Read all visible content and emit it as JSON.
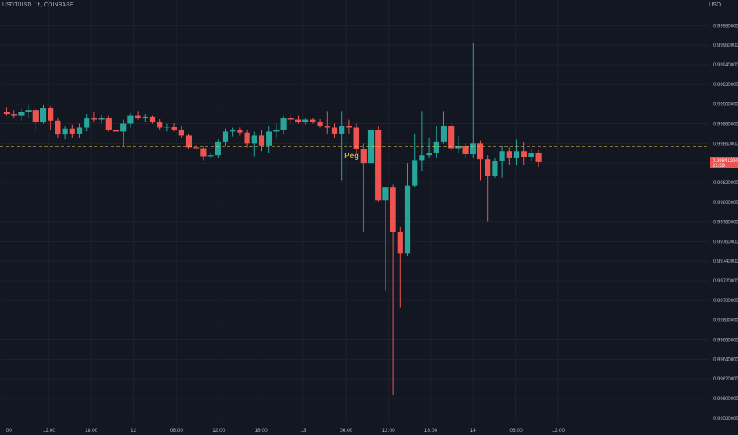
{
  "header": {
    "symbol_line": "USDT/USD, 1h, COINBASE",
    "currency": "USD"
  },
  "colors": {
    "background": "#131722",
    "grid": "#1e222d",
    "up": "#26a69a",
    "down": "#ef5350",
    "peg": "#f7c948",
    "axis_text": "#b2b5be"
  },
  "chart_data": {
    "type": "candlestick",
    "title": "USDT/USD, 1h, COINBASE",
    "ylabel": "USD",
    "ylim": [
      0.99575,
      1.0
    ],
    "y_ticks": [
      "0.99980000",
      "0.99960000",
      "0.99940000",
      "0.99920000",
      "0.99900000",
      "0.99880000",
      "0.99860000",
      "0.99840000",
      "0.99820000",
      "0.99800000",
      "0.99780000",
      "0.99760000",
      "0.99740000",
      "0.99720000",
      "0.99700000",
      "0.99680000",
      "0.99660000",
      "0.99640000",
      "0.99620000",
      "0.99600000",
      "0.99580000"
    ],
    "y_tick_values": [
      0.9998,
      0.9996,
      0.9994,
      0.9992,
      0.999,
      0.9988,
      0.9986,
      0.9984,
      0.9982,
      0.998,
      0.9978,
      0.9976,
      0.9974,
      0.9972,
      0.997,
      0.9968,
      0.9966,
      0.9964,
      0.9962,
      0.996,
      0.9958
    ],
    "x_ticks": [
      {
        "label": "00",
        "index": -0.1
      },
      {
        "label": "12:00",
        "index": 5.8
      },
      {
        "label": "18:00",
        "index": 11.6
      },
      {
        "label": "12",
        "index": 17.4
      },
      {
        "label": "06:00",
        "index": 23.3
      },
      {
        "label": "12:00",
        "index": 29.1
      },
      {
        "label": "18:00",
        "index": 34.9
      },
      {
        "label": "13",
        "index": 40.7
      },
      {
        "label": "06:00",
        "index": 46.6
      },
      {
        "label": "12:00",
        "index": 52.4
      },
      {
        "label": "18:00",
        "index": 58.2
      },
      {
        "label": "14",
        "index": 64.0
      },
      {
        "label": "06:00",
        "index": 69.9
      },
      {
        "label": "12:00",
        "index": 75.7
      }
    ],
    "peg": {
      "label": "Peg",
      "value": 0.99857
    },
    "last_price": {
      "label": "0.99841200",
      "sublabel": "21:59",
      "value": 0.99841
    },
    "candles": [
      {
        "o": 0.99892,
        "h": 0.99897,
        "l": 0.99888,
        "c": 0.9989
      },
      {
        "o": 0.9989,
        "h": 0.99894,
        "l": 0.99886,
        "c": 0.99888
      },
      {
        "o": 0.99888,
        "h": 0.99895,
        "l": 0.99883,
        "c": 0.99892
      },
      {
        "o": 0.99892,
        "h": 0.99899,
        "l": 0.99886,
        "c": 0.99894
      },
      {
        "o": 0.99894,
        "h": 0.99896,
        "l": 0.99872,
        "c": 0.99882
      },
      {
        "o": 0.99882,
        "h": 0.99899,
        "l": 0.9988,
        "c": 0.99896
      },
      {
        "o": 0.99896,
        "h": 0.99898,
        "l": 0.99874,
        "c": 0.99883
      },
      {
        "o": 0.99883,
        "h": 0.99886,
        "l": 0.99866,
        "c": 0.99869
      },
      {
        "o": 0.99869,
        "h": 0.99878,
        "l": 0.99864,
        "c": 0.99875
      },
      {
        "o": 0.99875,
        "h": 0.99879,
        "l": 0.99866,
        "c": 0.9987
      },
      {
        "o": 0.9987,
        "h": 0.9988,
        "l": 0.99866,
        "c": 0.99876
      },
      {
        "o": 0.99876,
        "h": 0.9989,
        "l": 0.99873,
        "c": 0.99886
      },
      {
        "o": 0.99886,
        "h": 0.99892,
        "l": 0.99882,
        "c": 0.99884
      },
      {
        "o": 0.99884,
        "h": 0.99889,
        "l": 0.99881,
        "c": 0.99886
      },
      {
        "o": 0.99886,
        "h": 0.99888,
        "l": 0.99872,
        "c": 0.99874
      },
      {
        "o": 0.99874,
        "h": 0.99877,
        "l": 0.99868,
        "c": 0.99872
      },
      {
        "o": 0.99872,
        "h": 0.99884,
        "l": 0.99858,
        "c": 0.9988
      },
      {
        "o": 0.9988,
        "h": 0.99891,
        "l": 0.99876,
        "c": 0.99888
      },
      {
        "o": 0.99888,
        "h": 0.99893,
        "l": 0.99884,
        "c": 0.99886
      },
      {
        "o": 0.99886,
        "h": 0.9989,
        "l": 0.99882,
        "c": 0.99887
      },
      {
        "o": 0.99887,
        "h": 0.99888,
        "l": 0.9988,
        "c": 0.99882
      },
      {
        "o": 0.99882,
        "h": 0.99885,
        "l": 0.99874,
        "c": 0.99876
      },
      {
        "o": 0.99876,
        "h": 0.9988,
        "l": 0.99872,
        "c": 0.99877
      },
      {
        "o": 0.99877,
        "h": 0.99881,
        "l": 0.99872,
        "c": 0.99874
      },
      {
        "o": 0.99874,
        "h": 0.99878,
        "l": 0.99866,
        "c": 0.99868
      },
      {
        "o": 0.99868,
        "h": 0.9987,
        "l": 0.99854,
        "c": 0.99856
      },
      {
        "o": 0.99856,
        "h": 0.9986,
        "l": 0.99853,
        "c": 0.99855
      },
      {
        "o": 0.99855,
        "h": 0.99857,
        "l": 0.99843,
        "c": 0.99847
      },
      {
        "o": 0.99847,
        "h": 0.9985,
        "l": 0.99845,
        "c": 0.99848
      },
      {
        "o": 0.99848,
        "h": 0.99864,
        "l": 0.99845,
        "c": 0.99862
      },
      {
        "o": 0.99862,
        "h": 0.99875,
        "l": 0.99858,
        "c": 0.99872
      },
      {
        "o": 0.99872,
        "h": 0.99876,
        "l": 0.99867,
        "c": 0.99874
      },
      {
        "o": 0.99874,
        "h": 0.99876,
        "l": 0.99868,
        "c": 0.99871
      },
      {
        "o": 0.99871,
        "h": 0.99874,
        "l": 0.99856,
        "c": 0.9986
      },
      {
        "o": 0.9986,
        "h": 0.99872,
        "l": 0.99847,
        "c": 0.99868
      },
      {
        "o": 0.99868,
        "h": 0.99874,
        "l": 0.99852,
        "c": 0.99858
      },
      {
        "o": 0.99858,
        "h": 0.99878,
        "l": 0.9985,
        "c": 0.99872
      },
      {
        "o": 0.99872,
        "h": 0.9988,
        "l": 0.99866,
        "c": 0.99874
      },
      {
        "o": 0.99874,
        "h": 0.99888,
        "l": 0.9987,
        "c": 0.99886
      },
      {
        "o": 0.99886,
        "h": 0.9989,
        "l": 0.9988,
        "c": 0.99884
      },
      {
        "o": 0.99884,
        "h": 0.99888,
        "l": 0.9988,
        "c": 0.99882
      },
      {
        "o": 0.99882,
        "h": 0.99886,
        "l": 0.99879,
        "c": 0.99884
      },
      {
        "o": 0.99884,
        "h": 0.99886,
        "l": 0.9988,
        "c": 0.99882
      },
      {
        "o": 0.99882,
        "h": 0.99885,
        "l": 0.99876,
        "c": 0.99878
      },
      {
        "o": 0.99878,
        "h": 0.99893,
        "l": 0.9987,
        "c": 0.99876
      },
      {
        "o": 0.99876,
        "h": 0.9988,
        "l": 0.99866,
        "c": 0.9987
      },
      {
        "o": 0.9987,
        "h": 0.99893,
        "l": 0.99822,
        "c": 0.99878
      },
      {
        "o": 0.99878,
        "h": 0.99884,
        "l": 0.9987,
        "c": 0.99876
      },
      {
        "o": 0.99876,
        "h": 0.9988,
        "l": 0.9985,
        "c": 0.99854
      },
      {
        "o": 0.99854,
        "h": 0.9986,
        "l": 0.9977,
        "c": 0.9984
      },
      {
        "o": 0.9984,
        "h": 0.9988,
        "l": 0.99835,
        "c": 0.99874
      },
      {
        "o": 0.99874,
        "h": 0.99878,
        "l": 0.998,
        "c": 0.99802
      },
      {
        "o": 0.99802,
        "h": 0.99815,
        "l": 0.9971,
        "c": 0.99815
      },
      {
        "o": 0.99815,
        "h": 0.99818,
        "l": 0.99604,
        "c": 0.9977
      },
      {
        "o": 0.9977,
        "h": 0.99775,
        "l": 0.99693,
        "c": 0.99748
      },
      {
        "o": 0.99748,
        "h": 0.9984,
        "l": 0.99745,
        "c": 0.99817
      },
      {
        "o": 0.99817,
        "h": 0.9987,
        "l": 0.99815,
        "c": 0.99843
      },
      {
        "o": 0.99843,
        "h": 0.99893,
        "l": 0.99832,
        "c": 0.99848
      },
      {
        "o": 0.99848,
        "h": 0.99866,
        "l": 0.99845,
        "c": 0.9985
      },
      {
        "o": 0.9985,
        "h": 0.99878,
        "l": 0.99845,
        "c": 0.99862
      },
      {
        "o": 0.99862,
        "h": 0.99893,
        "l": 0.9986,
        "c": 0.99878
      },
      {
        "o": 0.99878,
        "h": 0.99882,
        "l": 0.99852,
        "c": 0.99855
      },
      {
        "o": 0.99855,
        "h": 0.99868,
        "l": 0.9985,
        "c": 0.99857
      },
      {
        "o": 0.99857,
        "h": 0.9986,
        "l": 0.99845,
        "c": 0.99849
      },
      {
        "o": 0.99849,
        "h": 0.99962,
        "l": 0.99845,
        "c": 0.9986
      },
      {
        "o": 0.9986,
        "h": 0.99863,
        "l": 0.99822,
        "c": 0.99844
      },
      {
        "o": 0.99844,
        "h": 0.99848,
        "l": 0.9978,
        "c": 0.99827
      },
      {
        "o": 0.99827,
        "h": 0.99845,
        "l": 0.99825,
        "c": 0.99842
      },
      {
        "o": 0.99842,
        "h": 0.99858,
        "l": 0.99825,
        "c": 0.99852
      },
      {
        "o": 0.99852,
        "h": 0.99856,
        "l": 0.99838,
        "c": 0.99845
      },
      {
        "o": 0.99845,
        "h": 0.99864,
        "l": 0.99838,
        "c": 0.99852
      },
      {
        "o": 0.99852,
        "h": 0.99862,
        "l": 0.99838,
        "c": 0.99846
      },
      {
        "o": 0.99846,
        "h": 0.99854,
        "l": 0.99842,
        "c": 0.9985
      },
      {
        "o": 0.9985,
        "h": 0.99853,
        "l": 0.99836,
        "c": 0.99841
      }
    ]
  }
}
